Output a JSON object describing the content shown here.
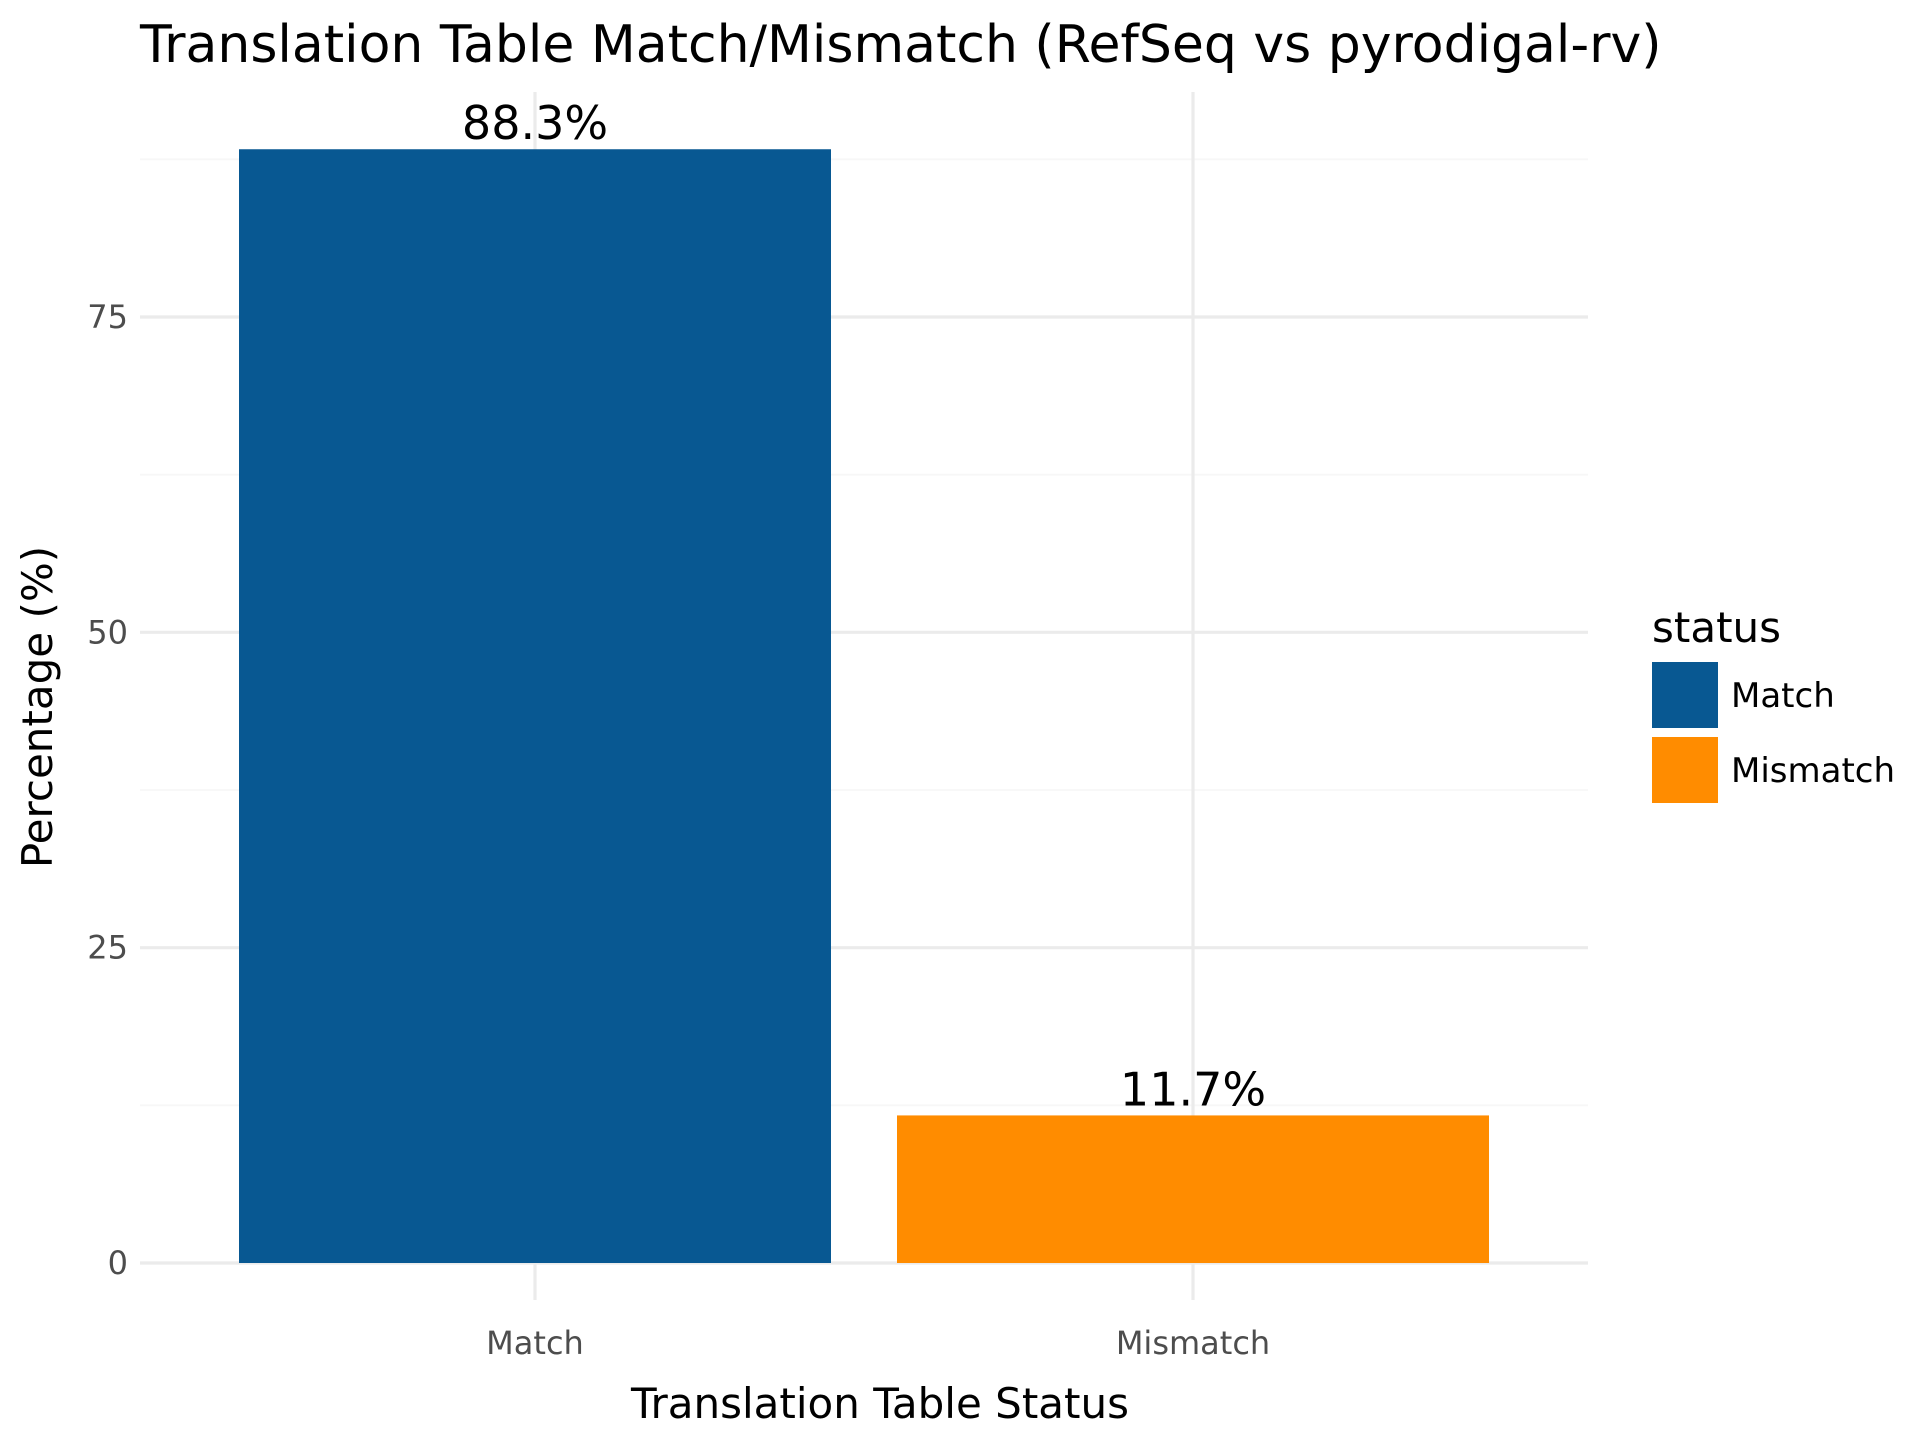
{
  "chart_data": {
    "type": "bar",
    "title": "Translation Table Match/Mismatch (RefSeq vs pyrodigal-rv)",
    "xlabel": "Translation Table Status",
    "ylabel": "Percentage (%)",
    "categories": [
      "Match",
      "Mismatch"
    ],
    "values": [
      88.3,
      11.7
    ],
    "data_labels": [
      "88.3%",
      "11.7%"
    ],
    "colors": [
      "#085892",
      "#FF8C00"
    ],
    "yticks": [
      0,
      25,
      50,
      75
    ],
    "ytick_labels": [
      "0",
      "25",
      "50",
      "75"
    ],
    "ylim": [
      0,
      93.6
    ],
    "grid": true,
    "legend": {
      "title": "status",
      "position": "right",
      "entries": [
        "Match",
        "Mismatch"
      ]
    }
  }
}
